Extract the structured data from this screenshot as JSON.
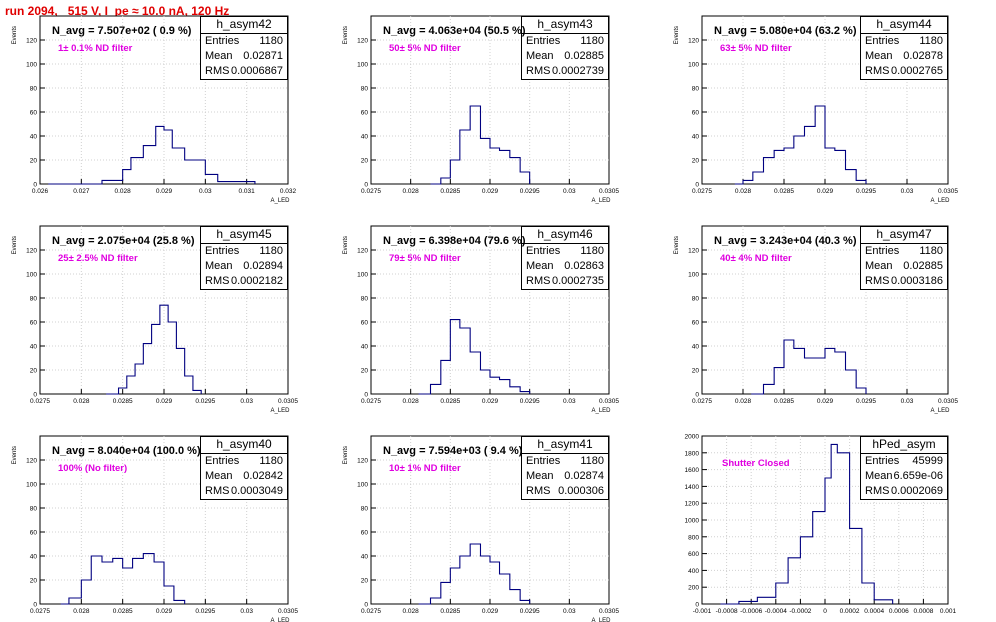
{
  "run_title": "run 2094,   515 V, I_pe ≈ 10.0 nA, 120 Hz",
  "colors": {
    "hist": "#000080",
    "grid": "#d0d0d0",
    "run_title": "#e00000",
    "filter_text": "#e000e0"
  },
  "chart_data": [
    {
      "type": "bar",
      "hist_name": "h_asym42",
      "entries": "1180",
      "mean": "0.02871",
      "rms": "0.0006867",
      "navg": "N_avg = 7.507e+02 ( 0.9 %)",
      "filter": "1± 0.1% ND filter",
      "ylabel": "Events",
      "xlabel": "A_LED",
      "xlim": [
        0.026,
        0.032
      ],
      "ylim": [
        0,
        140
      ],
      "y_ticks": [
        "0",
        "20",
        "40",
        "60",
        "80",
        "100",
        "120"
      ],
      "x_ticks": [
        "0.026",
        "0.027",
        "0.028",
        "0.029",
        "0.03",
        "0.031",
        "0.032"
      ],
      "x_tick_values": [
        0.026,
        0.027,
        0.028,
        0.029,
        0.03,
        0.031,
        0.032
      ],
      "x_bins": [
        0.0262,
        0.0275,
        0.028,
        0.0282,
        0.0285,
        0.0288,
        0.029,
        0.0292,
        0.0295,
        0.03,
        0.0303,
        0.0312
      ],
      "values": [
        0,
        3,
        12,
        22,
        32,
        48,
        45,
        30,
        20,
        8,
        2,
        0
      ]
    },
    {
      "type": "bar",
      "hist_name": "h_asym43",
      "entries": "1180",
      "mean": "0.02885",
      "rms": "0.0002739",
      "navg": "N_avg = 4.063e+04 (50.5 %)",
      "filter": "50± 5% ND filter",
      "ylabel": "Events",
      "xlabel": "A_LED",
      "xlim": [
        0.0275,
        0.0305
      ],
      "ylim": [
        0,
        140
      ],
      "y_ticks": [
        "0",
        "20",
        "40",
        "60",
        "80",
        "100",
        "120"
      ],
      "x_ticks": [
        "0.0275",
        "0.028",
        "0.0285",
        "0.029",
        "0.0295",
        "0.03",
        "0.0305"
      ],
      "x_tick_values": [
        0.0275,
        0.028,
        0.0285,
        0.029,
        0.0295,
        0.03,
        0.0305
      ],
      "x_bins": [
        0.02825,
        0.02838,
        0.0285,
        0.02862,
        0.02875,
        0.02888,
        0.029,
        0.02912,
        0.02925,
        0.02938,
        0.0295
      ],
      "values": [
        0,
        5,
        20,
        45,
        65,
        38,
        30,
        28,
        22,
        10,
        0
      ]
    },
    {
      "type": "bar",
      "hist_name": "h_asym44",
      "entries": "1180",
      "mean": "0.02878",
      "rms": "0.0002765",
      "navg": "N_avg = 5.080e+04 (63.2 %)",
      "filter": "63± 5% ND filter",
      "ylabel": "Events",
      "xlabel": "A_LED",
      "xlim": [
        0.0275,
        0.0305
      ],
      "ylim": [
        0,
        140
      ],
      "y_ticks": [
        "0",
        "20",
        "40",
        "60",
        "80",
        "100",
        "120"
      ],
      "x_ticks": [
        "0.0275",
        "0.028",
        "0.0285",
        "0.029",
        "0.0295",
        "0.03",
        "0.0305"
      ],
      "x_bins": [
        0.0279,
        0.028,
        0.02812,
        0.02825,
        0.02838,
        0.0285,
        0.02862,
        0.02875,
        0.02888,
        0.029,
        0.02912,
        0.02925,
        0.02938,
        0.0295
      ],
      "x_tick_values": [
        0.0275,
        0.028,
        0.0285,
        0.029,
        0.0295,
        0.03,
        0.0305
      ],
      "values": [
        0,
        3,
        10,
        22,
        28,
        30,
        40,
        48,
        65,
        30,
        28,
        12,
        3,
        0
      ]
    },
    {
      "type": "bar",
      "hist_name": "h_asym45",
      "entries": "1180",
      "mean": "0.02894",
      "rms": "0.0002182",
      "navg": "N_avg = 2.075e+04 (25.8 %)",
      "filter": "25± 2.5% ND filter",
      "ylabel": "Events",
      "xlabel": "A_LED",
      "xlim": [
        0.0275,
        0.0305
      ],
      "ylim": [
        0,
        140
      ],
      "y_ticks": [
        "0",
        "20",
        "40",
        "60",
        "80",
        "100",
        "120"
      ],
      "x_ticks": [
        "0.0275",
        "0.028",
        "0.0285",
        "0.029",
        "0.0295",
        "0.03",
        "0.0305"
      ],
      "x_tick_values": [
        0.0275,
        0.028,
        0.0285,
        0.029,
        0.0295,
        0.03,
        0.0305
      ],
      "x_bins": [
        0.0283,
        0.02845,
        0.02855,
        0.02865,
        0.02875,
        0.02885,
        0.02895,
        0.02905,
        0.02915,
        0.02925,
        0.02935,
        0.02945
      ],
      "values": [
        0,
        5,
        15,
        25,
        42,
        58,
        74,
        60,
        38,
        15,
        3,
        0
      ]
    },
    {
      "type": "bar",
      "hist_name": "h_asym46",
      "entries": "1180",
      "mean": "0.02863",
      "rms": "0.0002735",
      "navg": "N_avg = 6.398e+04 (79.6 %)",
      "filter": "79± 5% ND filter",
      "ylabel": "Events",
      "xlabel": "A_LED",
      "xlim": [
        0.0275,
        0.0305
      ],
      "ylim": [
        0,
        140
      ],
      "y_ticks": [
        "0",
        "20",
        "40",
        "60",
        "80",
        "100",
        "120"
      ],
      "x_ticks": [
        "0.0275",
        "0.028",
        "0.0285",
        "0.029",
        "0.0295",
        "0.03",
        "0.0305"
      ],
      "x_tick_values": [
        0.0275,
        0.028,
        0.0285,
        0.029,
        0.0295,
        0.03,
        0.0305
      ],
      "x_bins": [
        0.0281,
        0.02825,
        0.02838,
        0.0285,
        0.02862,
        0.02875,
        0.02888,
        0.029,
        0.02912,
        0.02925,
        0.02938,
        0.0295
      ],
      "values": [
        0,
        8,
        28,
        62,
        55,
        35,
        20,
        14,
        12,
        6,
        2,
        0
      ]
    },
    {
      "type": "bar",
      "hist_name": "h_asym47",
      "entries": "1180",
      "mean": "0.02885",
      "rms": "0.0003186",
      "navg": "N_avg = 3.243e+04 (40.3 %)",
      "filter": "40± 4% ND filter",
      "ylabel": "Events",
      "xlabel": "A_LED",
      "xlim": [
        0.0275,
        0.0305
      ],
      "ylim": [
        0,
        140
      ],
      "y_ticks": [
        "0",
        "20",
        "40",
        "60",
        "80",
        "100",
        "120"
      ],
      "x_ticks": [
        "0.0275",
        "0.028",
        "0.0285",
        "0.029",
        "0.0295",
        "0.03",
        "0.0305"
      ],
      "x_tick_values": [
        0.0275,
        0.028,
        0.0285,
        0.029,
        0.0295,
        0.03,
        0.0305
      ],
      "x_bins": [
        0.0281,
        0.02825,
        0.02838,
        0.0285,
        0.02862,
        0.02875,
        0.02888,
        0.029,
        0.02912,
        0.02925,
        0.02938,
        0.0295
      ],
      "values": [
        0,
        8,
        22,
        45,
        38,
        30,
        30,
        38,
        35,
        20,
        5,
        0
      ]
    },
    {
      "type": "bar",
      "hist_name": "h_asym40",
      "entries": "1180",
      "mean": "0.02842",
      "rms": "0.0003049",
      "navg": "N_avg = 8.040e+04 (100.0 %)",
      "filter": "100% (No filter)",
      "ylabel": "Events",
      "xlabel": "A_LED",
      "xlim": [
        0.0275,
        0.0305
      ],
      "ylim": [
        0,
        140
      ],
      "y_ticks": [
        "0",
        "20",
        "40",
        "60",
        "80",
        "100",
        "120"
      ],
      "x_ticks": [
        "0.0275",
        "0.028",
        "0.0285",
        "0.029",
        "0.0295",
        "0.03",
        "0.0305"
      ],
      "x_tick_values": [
        0.0275,
        0.028,
        0.0285,
        0.029,
        0.0295,
        0.03,
        0.0305
      ],
      "x_bins": [
        0.02775,
        0.02785,
        0.028,
        0.02812,
        0.02825,
        0.02838,
        0.0285,
        0.02862,
        0.02875,
        0.02888,
        0.029,
        0.02912,
        0.02925
      ],
      "values": [
        0,
        5,
        20,
        40,
        35,
        38,
        30,
        38,
        42,
        35,
        15,
        3,
        0
      ]
    },
    {
      "type": "bar",
      "hist_name": "h_asym41",
      "entries": "1180",
      "mean": "0.02874",
      "rms": "0.000306",
      "navg": "N_avg = 7.594e+03 ( 9.4 %)",
      "filter": "10± 1% ND filter",
      "ylabel": "Events",
      "xlabel": "A_LED",
      "xlim": [
        0.0275,
        0.0305
      ],
      "ylim": [
        0,
        140
      ],
      "y_ticks": [
        "0",
        "20",
        "40",
        "60",
        "80",
        "100",
        "120"
      ],
      "x_ticks": [
        "0.0275",
        "0.028",
        "0.0285",
        "0.029",
        "0.0295",
        "0.03",
        "0.0305"
      ],
      "x_tick_values": [
        0.0275,
        0.028,
        0.0285,
        0.029,
        0.0295,
        0.03,
        0.0305
      ],
      "x_bins": [
        0.0281,
        0.02825,
        0.02838,
        0.0285,
        0.02862,
        0.02875,
        0.02888,
        0.029,
        0.02912,
        0.02925,
        0.02938,
        0.0295
      ],
      "values": [
        0,
        5,
        18,
        30,
        40,
        50,
        40,
        35,
        25,
        12,
        3,
        0
      ]
    },
    {
      "type": "bar",
      "hist_name": "hPed_asym",
      "entries": "45999",
      "mean": "6.659e-06",
      "rms": "0.0002069",
      "navg": "",
      "filter": "Shutter Closed",
      "ylabel": "",
      "xlabel": "",
      "xlim": [
        -0.001,
        0.001
      ],
      "ylim": [
        0,
        2000
      ],
      "y_ticks": [
        "0",
        "200",
        "400",
        "600",
        "800",
        "1000",
        "1200",
        "1400",
        "1600",
        "1800",
        "2000"
      ],
      "x_ticks": [
        "-0.001",
        "-0.0008",
        "-0.0006",
        "-0.0004",
        "-0.0002",
        "0",
        "0.0002",
        "0.0004",
        "0.0006",
        "0.0008",
        "0.001"
      ],
      "x_tick_values": [
        -0.001,
        -0.0008,
        -0.0006,
        -0.0004,
        -0.0002,
        0,
        0.0002,
        0.0004,
        0.0006,
        0.0008,
        0.001
      ],
      "x_bins": [
        -0.00085,
        -0.0007,
        -0.00055,
        -0.0004,
        -0.0003,
        -0.0002,
        -0.0001,
        0.0,
        5e-05,
        0.0001,
        0.0002,
        0.0003,
        0.0004,
        0.00055
      ],
      "values": [
        0,
        30,
        80,
        250,
        550,
        800,
        1100,
        1500,
        1900,
        1800,
        900,
        250,
        50,
        0
      ]
    }
  ]
}
